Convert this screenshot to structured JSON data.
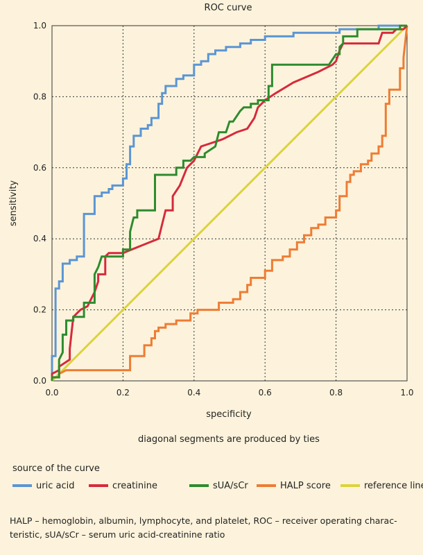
{
  "chart_data": {
    "type": "line",
    "title": "ROC curve",
    "xlabel": "specificity",
    "ylabel": "sensitivity",
    "xlim": [
      0,
      1
    ],
    "ylim": [
      0,
      1
    ],
    "x_ticks": [
      "0.0",
      "0.2",
      "0.4",
      "0.6",
      "0.8",
      "1.0"
    ],
    "y_ticks": [
      "0.0",
      "0.2",
      "0.4",
      "0.6",
      "0.8",
      "1.0"
    ],
    "grid": true,
    "note": "diagonal segments are produced by ties",
    "legend_title": "source of the curve",
    "series": [
      {
        "name": "uric acid",
        "color": "#5b95d4",
        "points": [
          [
            0,
            0
          ],
          [
            0,
            0.07
          ],
          [
            0.01,
            0.07
          ],
          [
            0.01,
            0.26
          ],
          [
            0.02,
            0.26
          ],
          [
            0.02,
            0.28
          ],
          [
            0.03,
            0.28
          ],
          [
            0.03,
            0.33
          ],
          [
            0.05,
            0.33
          ],
          [
            0.05,
            0.34
          ],
          [
            0.07,
            0.34
          ],
          [
            0.07,
            0.35
          ],
          [
            0.09,
            0.35
          ],
          [
            0.09,
            0.47
          ],
          [
            0.12,
            0.47
          ],
          [
            0.12,
            0.52
          ],
          [
            0.14,
            0.52
          ],
          [
            0.14,
            0.53
          ],
          [
            0.16,
            0.53
          ],
          [
            0.16,
            0.54
          ],
          [
            0.17,
            0.54
          ],
          [
            0.17,
            0.55
          ],
          [
            0.2,
            0.55
          ],
          [
            0.2,
            0.57
          ],
          [
            0.21,
            0.57
          ],
          [
            0.21,
            0.61
          ],
          [
            0.22,
            0.61
          ],
          [
            0.22,
            0.66
          ],
          [
            0.23,
            0.66
          ],
          [
            0.23,
            0.69
          ],
          [
            0.25,
            0.69
          ],
          [
            0.25,
            0.71
          ],
          [
            0.27,
            0.71
          ],
          [
            0.27,
            0.72
          ],
          [
            0.28,
            0.72
          ],
          [
            0.28,
            0.74
          ],
          [
            0.3,
            0.74
          ],
          [
            0.3,
            0.78
          ],
          [
            0.31,
            0.78
          ],
          [
            0.31,
            0.81
          ],
          [
            0.32,
            0.81
          ],
          [
            0.32,
            0.83
          ],
          [
            0.35,
            0.83
          ],
          [
            0.35,
            0.85
          ],
          [
            0.37,
            0.85
          ],
          [
            0.37,
            0.86
          ],
          [
            0.4,
            0.86
          ],
          [
            0.4,
            0.89
          ],
          [
            0.42,
            0.89
          ],
          [
            0.42,
            0.9
          ],
          [
            0.44,
            0.9
          ],
          [
            0.44,
            0.92
          ],
          [
            0.46,
            0.92
          ],
          [
            0.46,
            0.93
          ],
          [
            0.49,
            0.93
          ],
          [
            0.49,
            0.94
          ],
          [
            0.53,
            0.94
          ],
          [
            0.53,
            0.95
          ],
          [
            0.56,
            0.95
          ],
          [
            0.56,
            0.96
          ],
          [
            0.6,
            0.96
          ],
          [
            0.6,
            0.97
          ],
          [
            0.68,
            0.97
          ],
          [
            0.68,
            0.98
          ],
          [
            0.81,
            0.98
          ],
          [
            0.81,
            0.99
          ],
          [
            0.92,
            0.99
          ],
          [
            0.92,
            1.0
          ],
          [
            1.0,
            1.0
          ]
        ]
      },
      {
        "name": "creatinine",
        "color": "#d62a3b",
        "points": [
          [
            0,
            0
          ],
          [
            0,
            0.02
          ],
          [
            0.02,
            0.03
          ],
          [
            0.02,
            0.04
          ],
          [
            0.05,
            0.06
          ],
          [
            0.05,
            0.09
          ],
          [
            0.06,
            0.18
          ],
          [
            0.08,
            0.2
          ],
          [
            0.1,
            0.21
          ],
          [
            0.12,
            0.25
          ],
          [
            0.13,
            0.28
          ],
          [
            0.13,
            0.3
          ],
          [
            0.15,
            0.3
          ],
          [
            0.15,
            0.35
          ],
          [
            0.16,
            0.36
          ],
          [
            0.2,
            0.36
          ],
          [
            0.25,
            0.38
          ],
          [
            0.3,
            0.4
          ],
          [
            0.31,
            0.44
          ],
          [
            0.32,
            0.48
          ],
          [
            0.34,
            0.48
          ],
          [
            0.34,
            0.52
          ],
          [
            0.36,
            0.55
          ],
          [
            0.38,
            0.6
          ],
          [
            0.4,
            0.62
          ],
          [
            0.42,
            0.66
          ],
          [
            0.45,
            0.67
          ],
          [
            0.48,
            0.68
          ],
          [
            0.52,
            0.7
          ],
          [
            0.55,
            0.71
          ],
          [
            0.57,
            0.74
          ],
          [
            0.58,
            0.77
          ],
          [
            0.6,
            0.79
          ],
          [
            0.63,
            0.81
          ],
          [
            0.68,
            0.84
          ],
          [
            0.75,
            0.87
          ],
          [
            0.79,
            0.89
          ],
          [
            0.8,
            0.9
          ],
          [
            0.81,
            0.93
          ],
          [
            0.82,
            0.95
          ],
          [
            0.92,
            0.95
          ],
          [
            0.93,
            0.98
          ],
          [
            0.96,
            0.98
          ],
          [
            0.97,
            0.99
          ],
          [
            0.99,
            0.99
          ],
          [
            1.0,
            1.0
          ]
        ]
      },
      {
        "name": "sUA/sCr",
        "color": "#2e8b2e",
        "points": [
          [
            0,
            0
          ],
          [
            0,
            0.01
          ],
          [
            0.02,
            0.01
          ],
          [
            0.02,
            0.06
          ],
          [
            0.03,
            0.08
          ],
          [
            0.03,
            0.13
          ],
          [
            0.04,
            0.13
          ],
          [
            0.04,
            0.17
          ],
          [
            0.06,
            0.17
          ],
          [
            0.06,
            0.18
          ],
          [
            0.09,
            0.18
          ],
          [
            0.09,
            0.22
          ],
          [
            0.12,
            0.22
          ],
          [
            0.12,
            0.3
          ],
          [
            0.13,
            0.32
          ],
          [
            0.14,
            0.35
          ],
          [
            0.2,
            0.35
          ],
          [
            0.2,
            0.37
          ],
          [
            0.22,
            0.37
          ],
          [
            0.22,
            0.42
          ],
          [
            0.23,
            0.46
          ],
          [
            0.24,
            0.46
          ],
          [
            0.24,
            0.48
          ],
          [
            0.25,
            0.48
          ],
          [
            0.25,
            0.48
          ],
          [
            0.29,
            0.48
          ],
          [
            0.29,
            0.58
          ],
          [
            0.35,
            0.58
          ],
          [
            0.35,
            0.6
          ],
          [
            0.37,
            0.6
          ],
          [
            0.37,
            0.62
          ],
          [
            0.39,
            0.62
          ],
          [
            0.4,
            0.63
          ],
          [
            0.43,
            0.63
          ],
          [
            0.43,
            0.64
          ],
          [
            0.46,
            0.66
          ],
          [
            0.47,
            0.7
          ],
          [
            0.49,
            0.7
          ],
          [
            0.5,
            0.73
          ],
          [
            0.51,
            0.73
          ],
          [
            0.53,
            0.76
          ],
          [
            0.54,
            0.77
          ],
          [
            0.56,
            0.77
          ],
          [
            0.56,
            0.78
          ],
          [
            0.58,
            0.78
          ],
          [
            0.58,
            0.79
          ],
          [
            0.61,
            0.79
          ],
          [
            0.61,
            0.83
          ],
          [
            0.62,
            0.83
          ],
          [
            0.62,
            0.89
          ],
          [
            0.78,
            0.89
          ],
          [
            0.8,
            0.92
          ],
          [
            0.81,
            0.92
          ],
          [
            0.81,
            0.94
          ],
          [
            0.82,
            0.95
          ],
          [
            0.82,
            0.97
          ],
          [
            0.86,
            0.97
          ],
          [
            0.86,
            0.99
          ],
          [
            0.98,
            0.99
          ],
          [
            0.98,
            1.0
          ],
          [
            1.0,
            1.0
          ]
        ]
      },
      {
        "name": "HALP score",
        "color": "#ee7c34",
        "points": [
          [
            0,
            0
          ],
          [
            0,
            0.01
          ],
          [
            0.02,
            0.01
          ],
          [
            0.02,
            0.02
          ],
          [
            0.04,
            0.03
          ],
          [
            0.22,
            0.03
          ],
          [
            0.22,
            0.07
          ],
          [
            0.26,
            0.07
          ],
          [
            0.26,
            0.1
          ],
          [
            0.28,
            0.1
          ],
          [
            0.28,
            0.12
          ],
          [
            0.29,
            0.12
          ],
          [
            0.29,
            0.14
          ],
          [
            0.3,
            0.14
          ],
          [
            0.3,
            0.15
          ],
          [
            0.32,
            0.15
          ],
          [
            0.32,
            0.16
          ],
          [
            0.35,
            0.16
          ],
          [
            0.35,
            0.17
          ],
          [
            0.39,
            0.17
          ],
          [
            0.39,
            0.19
          ],
          [
            0.41,
            0.19
          ],
          [
            0.41,
            0.2
          ],
          [
            0.47,
            0.2
          ],
          [
            0.47,
            0.22
          ],
          [
            0.51,
            0.22
          ],
          [
            0.51,
            0.23
          ],
          [
            0.53,
            0.23
          ],
          [
            0.53,
            0.25
          ],
          [
            0.55,
            0.25
          ],
          [
            0.55,
            0.27
          ],
          [
            0.56,
            0.27
          ],
          [
            0.56,
            0.29
          ],
          [
            0.6,
            0.29
          ],
          [
            0.6,
            0.31
          ],
          [
            0.62,
            0.31
          ],
          [
            0.62,
            0.34
          ],
          [
            0.65,
            0.34
          ],
          [
            0.65,
            0.35
          ],
          [
            0.67,
            0.35
          ],
          [
            0.67,
            0.37
          ],
          [
            0.69,
            0.37
          ],
          [
            0.69,
            0.39
          ],
          [
            0.71,
            0.39
          ],
          [
            0.71,
            0.41
          ],
          [
            0.73,
            0.41
          ],
          [
            0.73,
            0.43
          ],
          [
            0.75,
            0.43
          ],
          [
            0.75,
            0.44
          ],
          [
            0.77,
            0.44
          ],
          [
            0.77,
            0.46
          ],
          [
            0.8,
            0.46
          ],
          [
            0.8,
            0.48
          ],
          [
            0.81,
            0.48
          ],
          [
            0.81,
            0.52
          ],
          [
            0.83,
            0.52
          ],
          [
            0.83,
            0.56
          ],
          [
            0.84,
            0.56
          ],
          [
            0.84,
            0.58
          ],
          [
            0.85,
            0.58
          ],
          [
            0.85,
            0.59
          ],
          [
            0.87,
            0.59
          ],
          [
            0.87,
            0.61
          ],
          [
            0.89,
            0.61
          ],
          [
            0.89,
            0.62
          ],
          [
            0.9,
            0.62
          ],
          [
            0.9,
            0.64
          ],
          [
            0.92,
            0.64
          ],
          [
            0.92,
            0.66
          ],
          [
            0.93,
            0.66
          ],
          [
            0.93,
            0.69
          ],
          [
            0.94,
            0.69
          ],
          [
            0.94,
            0.78
          ],
          [
            0.95,
            0.78
          ],
          [
            0.95,
            0.82
          ],
          [
            0.98,
            0.82
          ],
          [
            0.98,
            0.88
          ],
          [
            0.99,
            0.88
          ],
          [
            0.99,
            0.91
          ],
          [
            1.0,
            1.0
          ]
        ]
      },
      {
        "name": "reference line",
        "color": "#dcd33a",
        "points": [
          [
            0,
            0
          ],
          [
            1,
            1
          ]
        ]
      }
    ]
  },
  "footnote": {
    "line1": "HALP – hemoglobin, albumin, lymphocyte, and platelet, ROC – receiver operating charac-",
    "line2": "teristic, sUA/sCr – serum uric acid-creatinine ratio"
  }
}
